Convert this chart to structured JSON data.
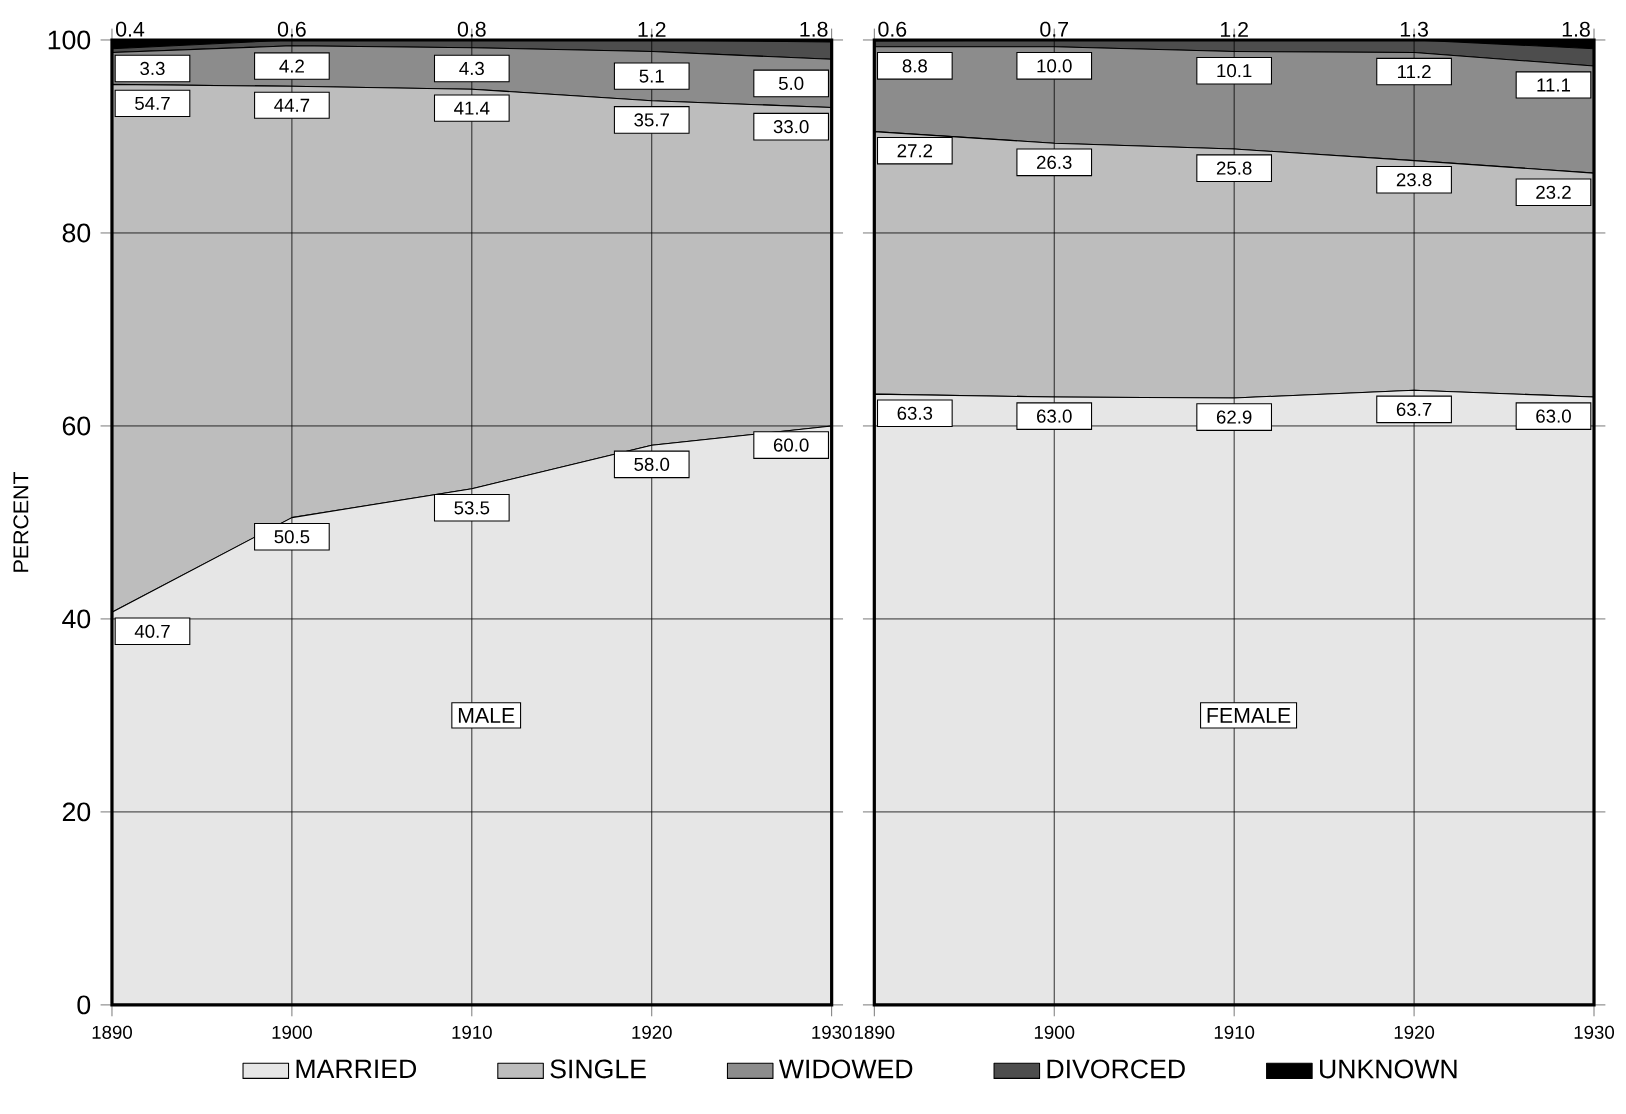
{
  "chart_data": [
    {
      "type": "area",
      "stacked": true,
      "x": [
        1890,
        1900,
        1910,
        1920,
        1930
      ],
      "xlim": [
        1890,
        1930
      ],
      "xticks": [
        1890,
        1900,
        1910,
        1920,
        1930
      ],
      "ylim": [
        0,
        100
      ],
      "yticks": [
        0,
        20,
        40,
        60,
        80,
        100
      ],
      "ylabel": "PERCENT",
      "grid": true,
      "legend": "bottom",
      "annotations": [
        "MALE"
      ],
      "series": [
        {
          "name": "MARRIED",
          "color": "#e6e6e6",
          "values": [
            40.7,
            50.5,
            53.5,
            58.0,
            60.0
          ],
          "value_labels": [
            "40.7",
            "50.5",
            "53.5",
            "58.0",
            "60.0"
          ]
        },
        {
          "name": "SINGLE",
          "color": "#bdbdbd",
          "values": [
            54.7,
            44.7,
            41.4,
            35.7,
            33.0
          ],
          "value_labels": [
            "54.7",
            "44.7",
            "41.4",
            "35.7",
            "33.0"
          ]
        },
        {
          "name": "WIDOWED",
          "color": "#8c8c8c",
          "values": [
            3.3,
            4.2,
            4.3,
            5.1,
            5.0
          ],
          "value_labels": [
            "3.3",
            "4.2",
            "4.3",
            "5.1",
            "5.0"
          ]
        },
        {
          "name": "DIVORCED",
          "color": "#4d4d4d",
          "values": [
            0.4,
            0.6,
            0.8,
            1.2,
            1.8
          ],
          "value_labels": [
            "0.4",
            "0.6",
            "0.8",
            "1.2",
            "1.8"
          ]
        },
        {
          "name": "UNKNOWN",
          "color": "#000000",
          "values": [
            0.9,
            0.0,
            0.0,
            0.0,
            0.2
          ]
        }
      ]
    },
    {
      "type": "area",
      "stacked": true,
      "x": [
        1890,
        1900,
        1910,
        1920,
        1930
      ],
      "xlim": [
        1890,
        1930
      ],
      "xticks": [
        1890,
        1900,
        1910,
        1920,
        1930
      ],
      "ylim": [
        0,
        100
      ],
      "yticks": [
        0,
        20,
        40,
        60,
        80,
        100
      ],
      "grid": true,
      "tick_labels": "x",
      "annotations": [
        "FEMALE"
      ],
      "series": [
        {
          "color": "#e6e6e6",
          "values": [
            63.3,
            63.0,
            62.9,
            63.7,
            63.0
          ],
          "value_labels": [
            "63.3",
            "63.0",
            "62.9",
            "63.7",
            "63.0"
          ]
        },
        {
          "color": "#bdbdbd",
          "values": [
            27.2,
            26.3,
            25.8,
            23.8,
            23.2
          ],
          "value_labels": [
            "27.2",
            "26.3",
            "25.8",
            "23.8",
            "23.2"
          ]
        },
        {
          "color": "#8c8c8c",
          "values": [
            8.8,
            10.0,
            10.1,
            11.2,
            11.1
          ],
          "value_labels": [
            "8.8",
            "10.0",
            "10.1",
            "11.2",
            "11.1"
          ]
        },
        {
          "color": "#4d4d4d",
          "values": [
            0.6,
            0.7,
            1.2,
            1.3,
            1.8
          ],
          "value_labels": [
            "0.6",
            "0.7",
            "1.2",
            "1.3",
            "1.8"
          ]
        },
        {
          "color": "#000000",
          "values": [
            0.1,
            0.0,
            0.0,
            0.0,
            0.9
          ]
        }
      ]
    }
  ]
}
